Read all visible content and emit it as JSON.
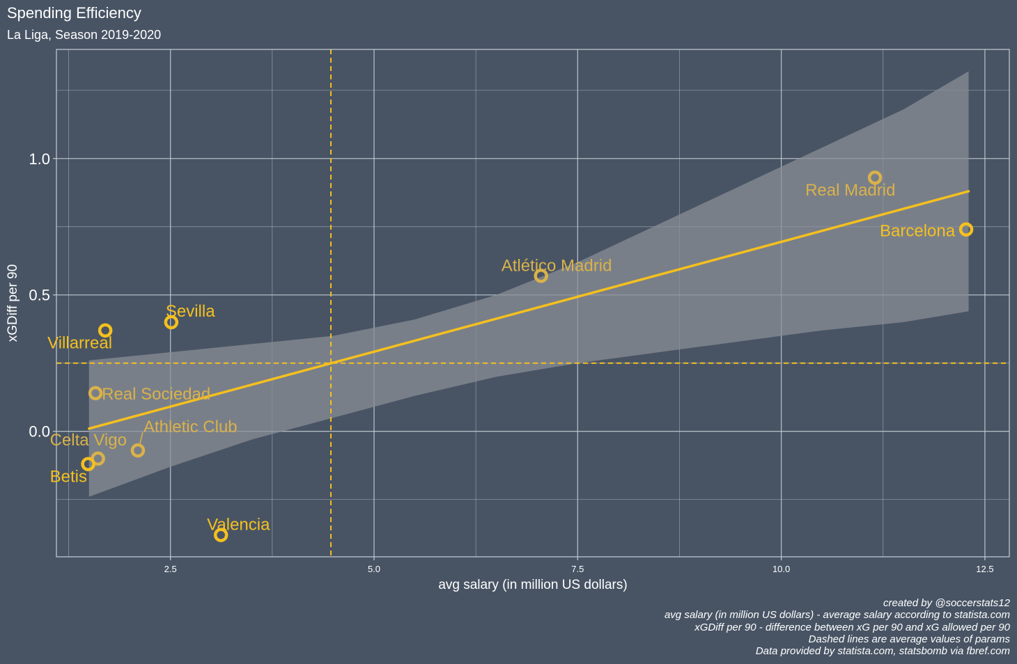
{
  "title": "Spending Efficiency",
  "subtitle": "La Liga, Season 2019-2020",
  "caption": [
    "created by @soccerstats12",
    "avg salary (in million US dollars) - average salary according to statista.com",
    "xGDiff per 90 - difference between xG per 90 and xG allowed per 90",
    "Dashed lines are average values of params",
    "Data provided by statista.com, statsbomb via fbref.com"
  ],
  "colors": {
    "background": "#485464",
    "panel_border": "#c8cdd6",
    "grid": "#c8cdd6",
    "accent": "#f5c01e",
    "label_muted": "#d9b24a",
    "confidence_band": "#8a8e96"
  },
  "chart_data": {
    "type": "scatter",
    "xlabel": "avg salary (in million US dollars)",
    "ylabel": "xGDiff per 90",
    "xlim": [
      1.1,
      12.8
    ],
    "ylim": [
      -0.46,
      1.4
    ],
    "x_ticks": [
      {
        "value": 2.5,
        "label": "2.5"
      },
      {
        "value": 5.0,
        "label": "5.0"
      },
      {
        "value": 7.5,
        "label": "7.5"
      },
      {
        "value": 10.0,
        "label": "10.0"
      },
      {
        "value": 12.5,
        "label": "12.5"
      }
    ],
    "y_ticks": [
      {
        "value": 0.0,
        "label": "0.0"
      },
      {
        "value": 0.5,
        "label": "0.5"
      },
      {
        "value": 1.0,
        "label": "1.0"
      }
    ],
    "grid": true,
    "average_lines": {
      "x": 4.47,
      "y": 0.25
    },
    "trend_line": {
      "x": [
        1.5,
        12.3
      ],
      "y": [
        0.01,
        0.88
      ]
    },
    "confidence_band": {
      "x": [
        1.5,
        2.5,
        3.5,
        4.5,
        5.5,
        6.5,
        7.5,
        8.5,
        9.5,
        10.5,
        11.5,
        12.3
      ],
      "upper": [
        0.26,
        0.29,
        0.32,
        0.35,
        0.41,
        0.5,
        0.62,
        0.76,
        0.9,
        1.04,
        1.18,
        1.32
      ],
      "lower": [
        -0.24,
        -0.13,
        -0.03,
        0.05,
        0.13,
        0.2,
        0.25,
        0.29,
        0.33,
        0.37,
        0.4,
        0.44
      ]
    },
    "points": [
      {
        "team": "Real Madrid",
        "x": 11.15,
        "y": 0.93,
        "highlight": false
      },
      {
        "team": "Barcelona",
        "x": 12.27,
        "y": 0.74,
        "highlight": true
      },
      {
        "team": "Atlético Madrid",
        "x": 7.05,
        "y": 0.57,
        "highlight": false
      },
      {
        "team": "Sevilla",
        "x": 2.51,
        "y": 0.4,
        "highlight": true
      },
      {
        "team": "Villarreal",
        "x": 1.7,
        "y": 0.37,
        "highlight": true
      },
      {
        "team": "Real Sociedad",
        "x": 1.58,
        "y": 0.14,
        "highlight": false
      },
      {
        "team": "Athletic Club",
        "x": 2.1,
        "y": -0.07,
        "highlight": false
      },
      {
        "team": "Celta Vigo",
        "x": 1.61,
        "y": -0.1,
        "highlight": false
      },
      {
        "team": "Betis",
        "x": 1.49,
        "y": -0.12,
        "highlight": true
      },
      {
        "team": "Valencia",
        "x": 3.12,
        "y": -0.38,
        "highlight": true
      }
    ]
  }
}
